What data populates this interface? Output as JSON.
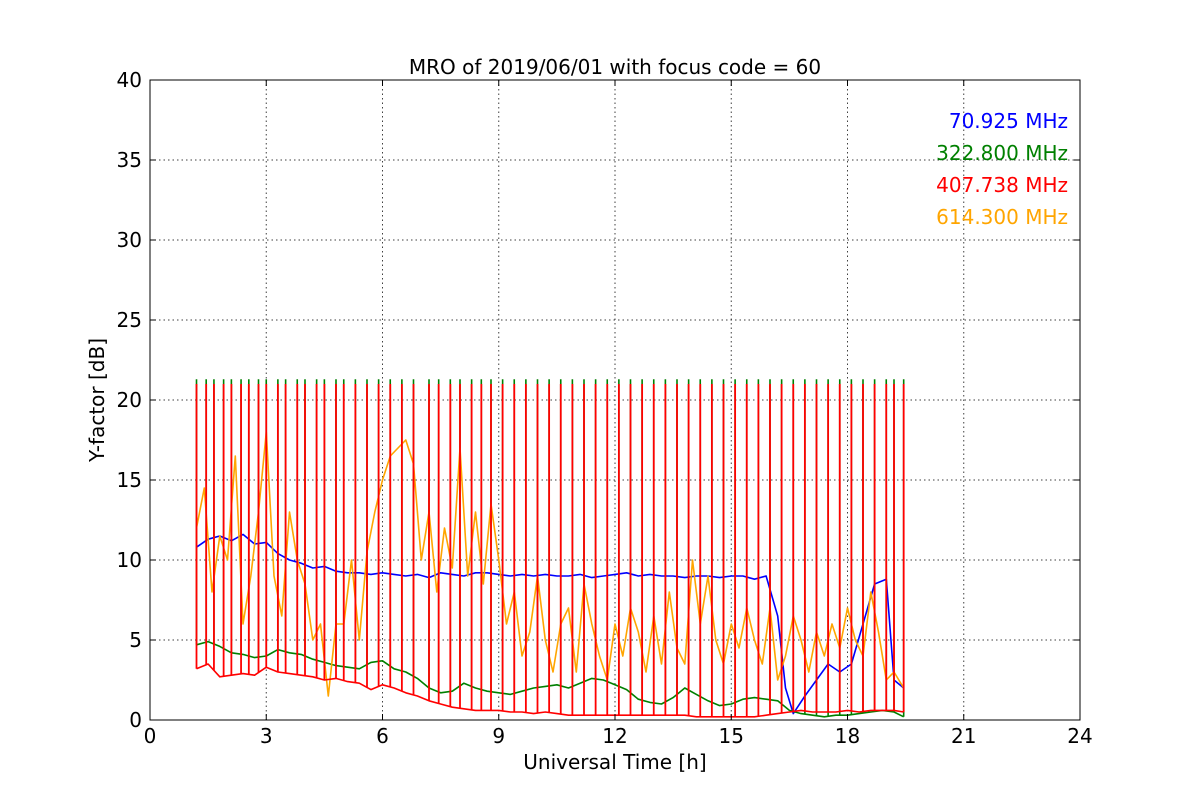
{
  "chart_data": {
    "type": "line",
    "title": "MRO of 2019/06/01 with focus code = 60",
    "xlabel": "Universal Time [h]",
    "ylabel": "Y-factor [dB]",
    "xlim": [
      0,
      24
    ],
    "ylim": [
      0,
      40
    ],
    "xticks": [
      0,
      3,
      6,
      9,
      12,
      15,
      18,
      21,
      24
    ],
    "yticks": [
      0,
      5,
      10,
      15,
      20,
      25,
      30,
      35,
      40
    ],
    "grid": true,
    "legend_position": "top-right",
    "spike_times": [
      1.2,
      1.45,
      1.65,
      1.9,
      2.1,
      2.35,
      2.55,
      2.8,
      3.0,
      3.3,
      3.5,
      3.8,
      4.0,
      4.3,
      4.5,
      4.8,
      5.0,
      5.3,
      5.6,
      5.9,
      6.2,
      6.5,
      6.8,
      7.2,
      7.45,
      7.75,
      8.0,
      8.3,
      8.55,
      8.8,
      9.1,
      9.4,
      9.7,
      10.0,
      10.3,
      10.6,
      10.9,
      11.2,
      11.5,
      11.8,
      12.1,
      12.4,
      12.7,
      13.0,
      13.3,
      13.6,
      13.9,
      14.2,
      14.5,
      14.8,
      15.1,
      15.4,
      15.7,
      16.0,
      16.3,
      16.6,
      16.9,
      17.2,
      17.5,
      17.8,
      18.1,
      18.4,
      18.7,
      19.0,
      19.2,
      19.45
    ],
    "series": [
      {
        "name": "70.925 MHz",
        "color": "#0000ff",
        "x": [
          1.2,
          1.5,
          1.8,
          2.1,
          2.4,
          2.7,
          3.0,
          3.3,
          3.6,
          3.9,
          4.2,
          4.5,
          4.8,
          5.1,
          5.4,
          5.7,
          6.0,
          6.3,
          6.6,
          6.9,
          7.2,
          7.5,
          7.8,
          8.1,
          8.4,
          8.7,
          9.0,
          9.3,
          9.6,
          9.9,
          10.2,
          10.5,
          10.8,
          11.1,
          11.4,
          11.7,
          12.0,
          12.3,
          12.6,
          12.9,
          13.2,
          13.5,
          13.8,
          14.1,
          14.4,
          14.7,
          15.0,
          15.3,
          15.6,
          15.9,
          16.2,
          16.4,
          16.6,
          16.9,
          17.2,
          17.5,
          17.8,
          18.1,
          18.4,
          18.7,
          19.0,
          19.2,
          19.45
        ],
        "y": [
          10.8,
          11.3,
          11.5,
          11.2,
          11.6,
          11.0,
          11.1,
          10.4,
          10.0,
          9.8,
          9.5,
          9.6,
          9.3,
          9.2,
          9.2,
          9.1,
          9.2,
          9.1,
          9.0,
          9.1,
          8.9,
          9.2,
          9.1,
          9.0,
          9.2,
          9.2,
          9.1,
          9.0,
          9.1,
          9.0,
          9.1,
          9.0,
          9.0,
          9.1,
          8.9,
          9.0,
          9.1,
          9.2,
          9.0,
          9.1,
          9.0,
          9.0,
          8.9,
          9.0,
          9.0,
          8.9,
          9.0,
          9.0,
          8.8,
          9.0,
          6.5,
          2.0,
          0.4,
          1.5,
          2.5,
          3.5,
          3.0,
          3.5,
          6.0,
          8.5,
          8.8,
          2.5,
          2.0
        ]
      },
      {
        "name": "322.800 MHz",
        "color": "#008000",
        "x": [
          1.2,
          1.5,
          1.8,
          2.1,
          2.4,
          2.7,
          3.0,
          3.3,
          3.6,
          3.9,
          4.2,
          4.5,
          4.8,
          5.1,
          5.4,
          5.7,
          6.0,
          6.3,
          6.6,
          6.9,
          7.2,
          7.5,
          7.8,
          8.1,
          8.4,
          8.7,
          9.0,
          9.3,
          9.6,
          9.9,
          10.2,
          10.5,
          10.8,
          11.1,
          11.4,
          11.7,
          12.0,
          12.3,
          12.6,
          12.9,
          13.2,
          13.5,
          13.8,
          14.1,
          14.4,
          14.7,
          15.0,
          15.3,
          15.6,
          15.9,
          16.2,
          16.5,
          16.8,
          17.1,
          17.4,
          17.7,
          18.0,
          18.3,
          18.6,
          18.9,
          19.2,
          19.45
        ],
        "y": [
          4.7,
          4.9,
          4.6,
          4.2,
          4.1,
          3.9,
          4.0,
          4.4,
          4.2,
          4.1,
          3.8,
          3.6,
          3.4,
          3.3,
          3.2,
          3.6,
          3.7,
          3.2,
          3.0,
          2.6,
          2.0,
          1.7,
          1.8,
          2.3,
          2.0,
          1.8,
          1.7,
          1.6,
          1.8,
          2.0,
          2.1,
          2.2,
          2.0,
          2.3,
          2.6,
          2.5,
          2.2,
          1.9,
          1.3,
          1.1,
          1.0,
          1.4,
          2.0,
          1.6,
          1.2,
          0.9,
          1.0,
          1.3,
          1.4,
          1.3,
          1.2,
          0.6,
          0.4,
          0.3,
          0.2,
          0.3,
          0.3,
          0.4,
          0.5,
          0.6,
          0.5,
          0.2
        ]
      },
      {
        "name": "407.738 MHz",
        "color": "#ff0000",
        "x": [
          1.2,
          1.5,
          1.8,
          2.1,
          2.4,
          2.7,
          3.0,
          3.3,
          3.6,
          3.9,
          4.2,
          4.5,
          4.8,
          5.1,
          5.4,
          5.7,
          6.0,
          6.3,
          6.6,
          6.9,
          7.2,
          7.5,
          7.8,
          8.1,
          8.4,
          8.7,
          9.0,
          9.3,
          9.6,
          9.9,
          10.2,
          10.5,
          10.8,
          11.1,
          11.4,
          11.7,
          12.0,
          12.3,
          12.6,
          12.9,
          13.2,
          13.5,
          13.8,
          14.1,
          14.4,
          14.7,
          15.0,
          15.3,
          15.6,
          15.9,
          16.2,
          16.5,
          16.8,
          17.1,
          17.4,
          17.7,
          18.0,
          18.3,
          18.6,
          18.9,
          19.2,
          19.45
        ],
        "y": [
          3.2,
          3.5,
          2.7,
          2.8,
          2.9,
          2.8,
          3.3,
          3.0,
          2.9,
          2.8,
          2.7,
          2.5,
          2.6,
          2.4,
          2.3,
          1.9,
          2.2,
          2.0,
          1.7,
          1.5,
          1.2,
          1.0,
          0.8,
          0.7,
          0.6,
          0.6,
          0.6,
          0.5,
          0.5,
          0.4,
          0.5,
          0.4,
          0.3,
          0.3,
          0.3,
          0.3,
          0.3,
          0.3,
          0.3,
          0.3,
          0.3,
          0.3,
          0.3,
          0.2,
          0.2,
          0.2,
          0.2,
          0.2,
          0.2,
          0.3,
          0.4,
          0.5,
          0.6,
          0.5,
          0.5,
          0.5,
          0.6,
          0.5,
          0.6,
          0.6,
          0.6,
          0.5
        ]
      },
      {
        "name": "614.300 MHz",
        "color": "#ffa500",
        "x": [
          1.2,
          1.4,
          1.6,
          1.8,
          2.0,
          2.2,
          2.4,
          2.6,
          2.8,
          3.0,
          3.2,
          3.4,
          3.6,
          3.8,
          4.0,
          4.2,
          4.4,
          4.6,
          4.8,
          5.0,
          5.2,
          5.4,
          5.6,
          5.8,
          6.0,
          6.2,
          6.4,
          6.6,
          6.8,
          7.0,
          7.2,
          7.4,
          7.6,
          7.8,
          8.0,
          8.2,
          8.4,
          8.6,
          8.8,
          9.0,
          9.2,
          9.4,
          9.6,
          9.8,
          10.0,
          10.2,
          10.4,
          10.6,
          10.8,
          11.0,
          11.2,
          11.4,
          11.6,
          11.8,
          12.0,
          12.2,
          12.4,
          12.6,
          12.8,
          13.0,
          13.2,
          13.4,
          13.6,
          13.8,
          14.0,
          14.2,
          14.4,
          14.6,
          14.8,
          15.0,
          15.2,
          15.4,
          15.6,
          15.8,
          16.0,
          16.2,
          16.4,
          16.6,
          16.8,
          17.0,
          17.2,
          17.4,
          17.6,
          17.8,
          18.0,
          18.2,
          18.4,
          18.6,
          18.8,
          19.0,
          19.2,
          19.45
        ],
        "y": [
          12.0,
          14.5,
          8.0,
          11.5,
          10.0,
          16.5,
          6.0,
          9.0,
          13.0,
          18.0,
          9.0,
          6.5,
          13.0,
          10.0,
          8.5,
          5.0,
          6.0,
          1.5,
          6.0,
          6.0,
          10.0,
          5.0,
          10.5,
          13.0,
          15.0,
          16.5,
          17.0,
          17.5,
          16.0,
          10.0,
          13.0,
          8.0,
          12.0,
          9.5,
          17.0,
          9.0,
          13.0,
          8.5,
          13.5,
          10.0,
          6.0,
          8.0,
          4.0,
          5.5,
          9.0,
          5.0,
          3.0,
          6.0,
          7.0,
          3.0,
          8.5,
          6.0,
          4.0,
          2.5,
          6.0,
          4.0,
          7.0,
          5.5,
          3.0,
          6.5,
          3.5,
          8.0,
          4.5,
          3.5,
          10.0,
          6.0,
          9.0,
          5.0,
          3.5,
          6.0,
          4.5,
          7.0,
          5.0,
          3.5,
          7.0,
          2.5,
          4.0,
          6.5,
          5.0,
          3.0,
          5.5,
          4.0,
          6.0,
          4.5,
          7.0,
          5.0,
          4.0,
          8.0,
          5.5,
          2.5,
          3.0,
          2.0
        ]
      }
    ],
    "spike_level_red": 21.0,
    "spike_level_green": 21.3,
    "spike_level_orange": 7.8
  }
}
